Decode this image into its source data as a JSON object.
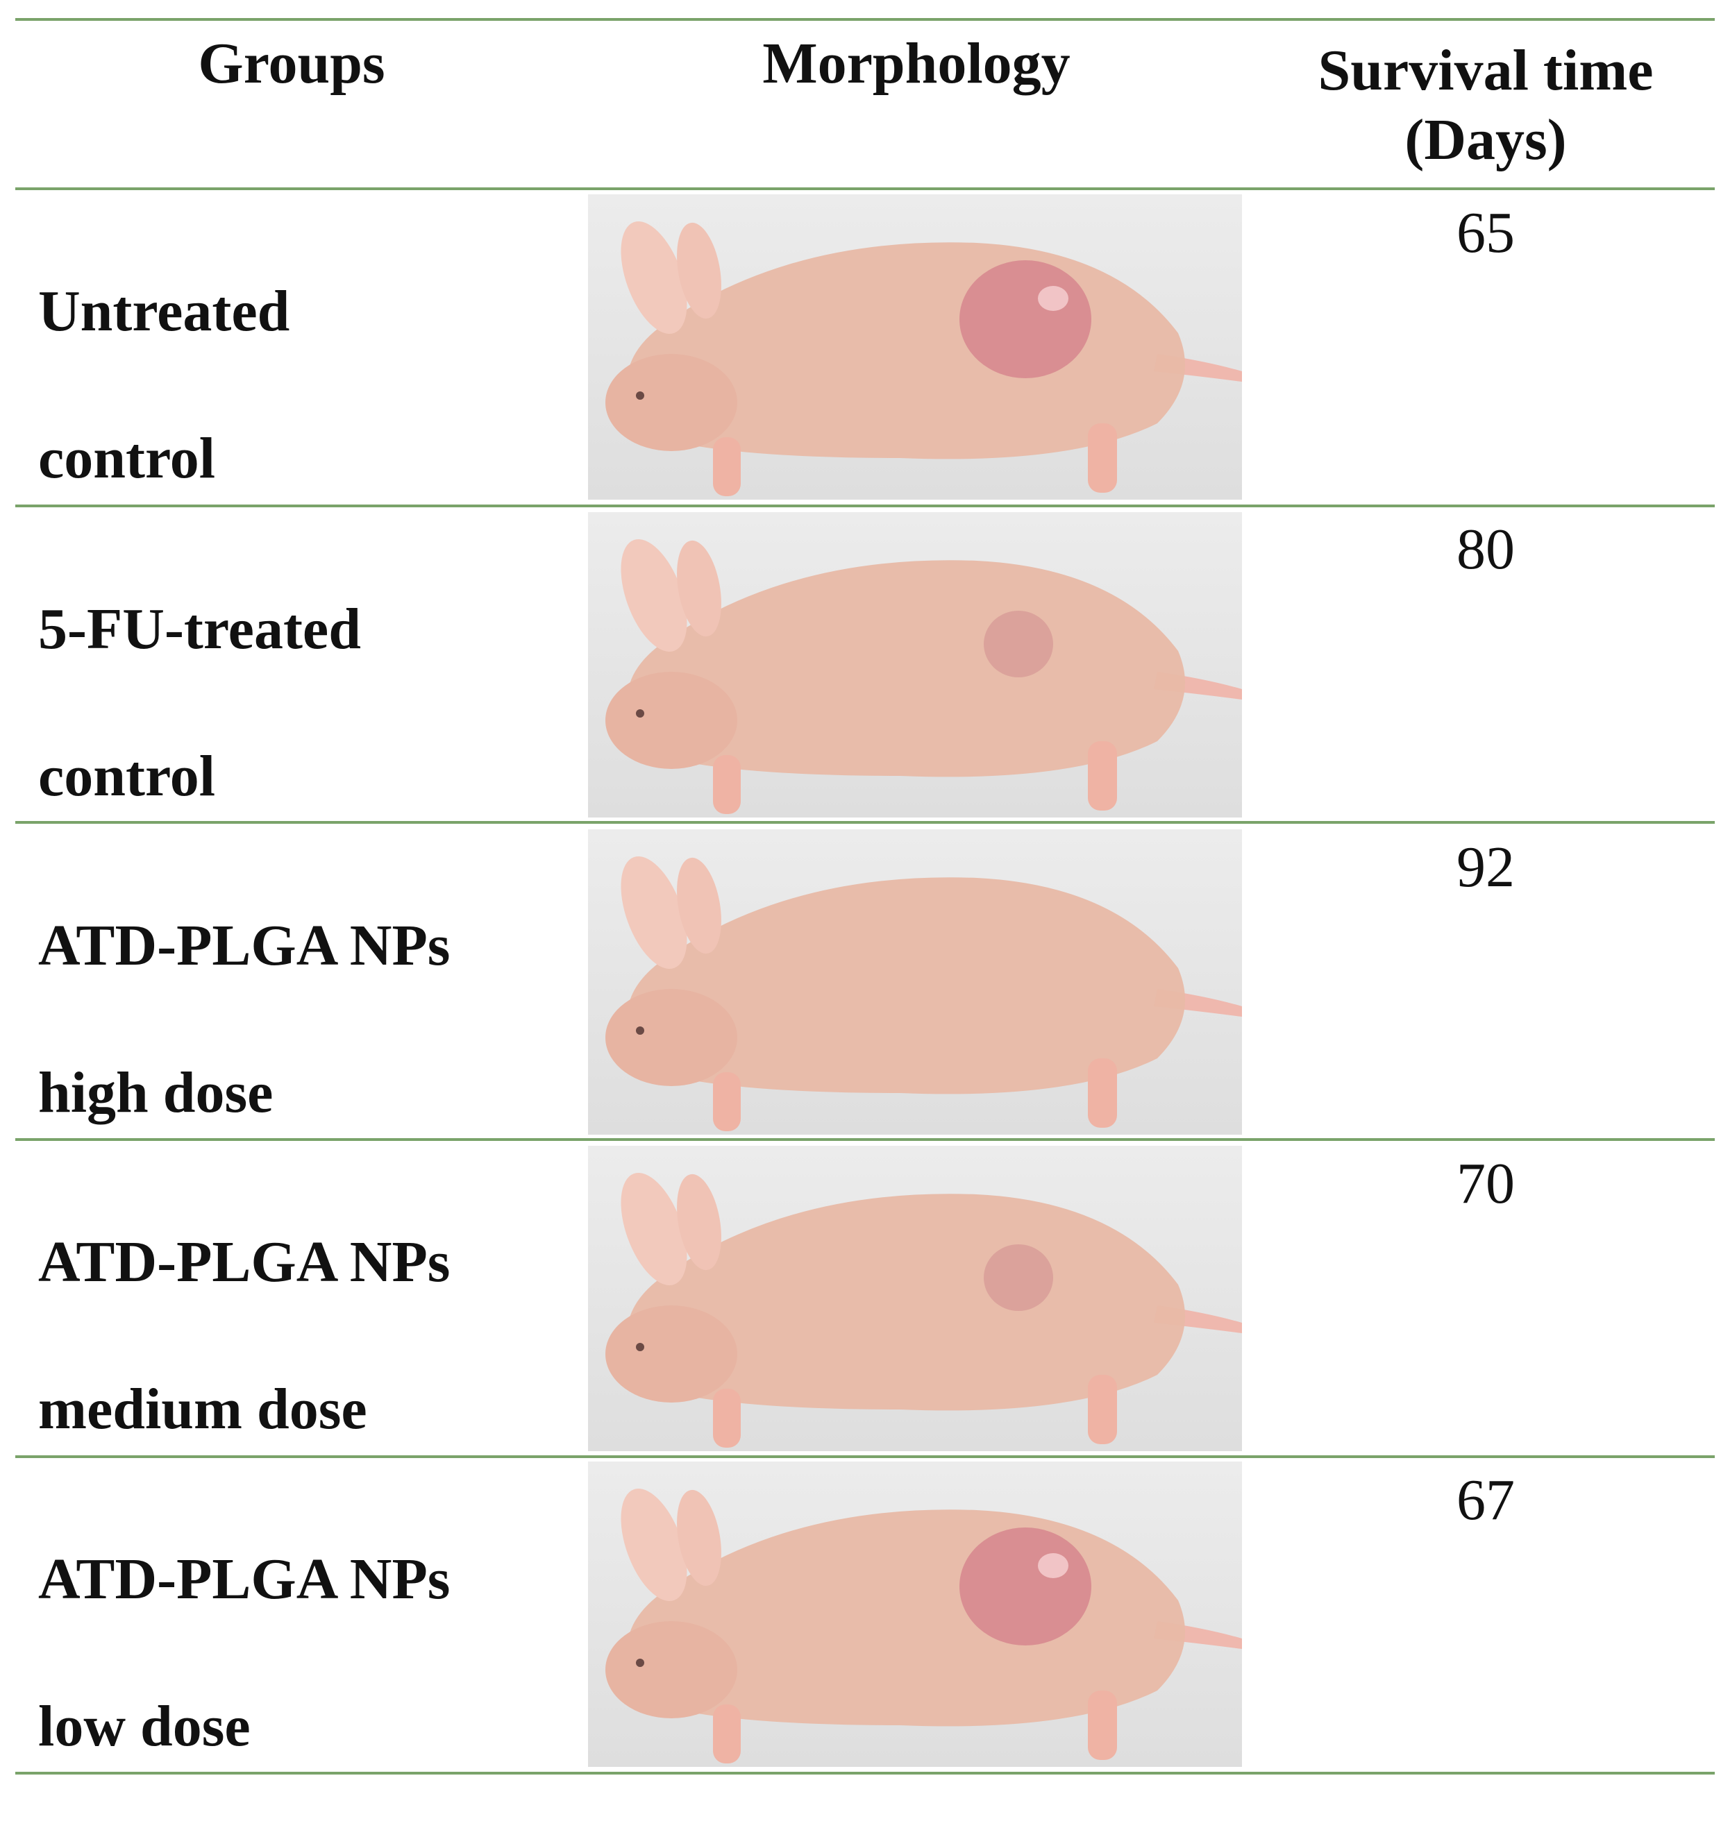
{
  "colors": {
    "rule": "#7aa36a",
    "mouse_skin": "#e8b9a6",
    "tumor": "#d98e92",
    "background": "#e6e6e6"
  },
  "header": {
    "groups": "Groups",
    "morphology": "Morphology",
    "survival_line1": "Survival time",
    "survival_line2": "(Days)"
  },
  "rows": [
    {
      "group_line1": "Untreated",
      "group_line2": "control",
      "survival_days": "65",
      "tumor": "large"
    },
    {
      "group_line1": "5-FU-treated",
      "group_line2": "control",
      "survival_days": "80",
      "tumor": "small"
    },
    {
      "group_line1": "ATD-PLGA NPs",
      "group_line2": "high dose",
      "survival_days": "92",
      "tumor": "none"
    },
    {
      "group_line1": "ATD-PLGA NPs",
      "group_line2": "medium dose",
      "survival_days": "70",
      "tumor": "small"
    },
    {
      "group_line1": "ATD-PLGA NPs",
      "group_line2": "low dose",
      "survival_days": "67",
      "tumor": "large"
    }
  ]
}
